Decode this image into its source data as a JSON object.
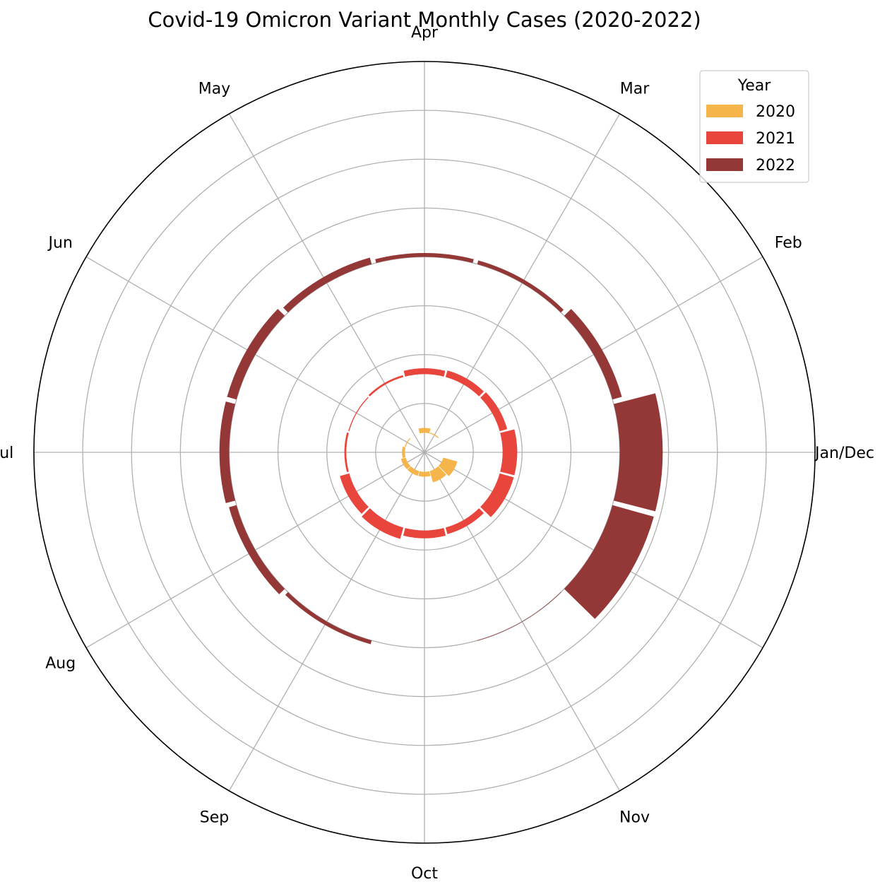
{
  "chart_data": {
    "type": "polar-bar",
    "title": "Covid-19 Omicron Variant Monthly Cases (2020-2022)",
    "angle_tick_labels": [
      "Jan/Dec",
      "Feb",
      "Mar",
      "Apr",
      "May",
      "Jun",
      "Jul",
      "Aug",
      "Sep",
      "Oct",
      "Nov"
    ],
    "legend": {
      "title": "Year",
      "placement": "top-right"
    },
    "radial_grid": [
      50,
      100,
      150,
      200,
      250,
      300,
      350,
      400
    ],
    "rlim": [
      0,
      400
    ],
    "grid": true,
    "months": [
      "Jan",
      "Feb",
      "Mar",
      "Apr",
      "May",
      "Jun",
      "Jul",
      "Aug",
      "Sep",
      "Oct",
      "Nov",
      "Dec"
    ],
    "series": [
      {
        "name": "2020",
        "color": "#f5b54a",
        "bottom": [
          10,
          20,
          20,
          20,
          20,
          20,
          20,
          20,
          20,
          20,
          20,
          20
        ],
        "values": [
          0,
          0,
          1,
          5,
          0,
          1,
          3,
          5,
          5,
          5,
          12,
          15
        ]
      },
      {
        "name": "2021",
        "color": "#e8453c",
        "bottom": [
          80,
          80,
          80,
          80,
          80,
          80,
          80,
          80,
          80,
          80,
          80,
          80
        ],
        "values": [
          15,
          8,
          7,
          6,
          2,
          1,
          2,
          10,
          12,
          8,
          7,
          15
        ]
      },
      {
        "name": "2022",
        "color": "#943737",
        "bottom": [
          200,
          200,
          200,
          200,
          200,
          200,
          200,
          200,
          200,
          200,
          200,
          200
        ],
        "values": [
          44,
          10,
          4,
          4,
          7,
          10,
          10,
          8,
          4,
          0,
          0.5,
          44
        ]
      }
    ]
  }
}
